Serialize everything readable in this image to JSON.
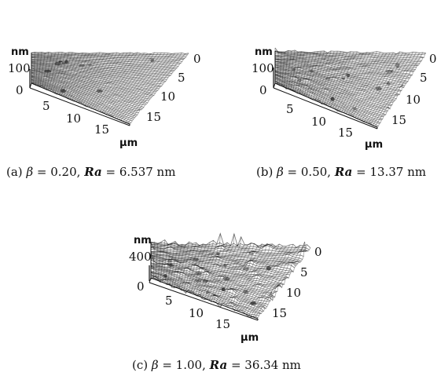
{
  "panels": [
    {
      "id": "a",
      "z_unit": "nm",
      "z_max": "100",
      "z_min": "0",
      "y_ticks": [
        "0",
        "5",
        "10",
        "15"
      ],
      "x_ticks": [
        "5",
        "10",
        "15"
      ],
      "xy_unit": "μm",
      "roughness": 0.25,
      "caption": "(a) β = 0.20, Ra = 6.537 nm",
      "caption_parts": {
        "label": "(a)",
        "beta_sym": "β",
        "beta_val": "= 0.20,",
        "ra_sym": "Ra",
        "ra_val": "= 6.537 nm"
      }
    },
    {
      "id": "b",
      "z_unit": "nm",
      "z_max": "100",
      "z_min": "0",
      "y_ticks": [
        "0",
        "5",
        "10",
        "15"
      ],
      "x_ticks": [
        "5",
        "10",
        "15"
      ],
      "xy_unit": "μm",
      "roughness": 0.5,
      "caption": "(b) β = 0.50, Ra = 13.37 nm",
      "caption_parts": {
        "label": "(b)",
        "beta_sym": "β",
        "beta_val": "= 0.50,",
        "ra_sym": "Ra",
        "ra_val": "= 13.37 nm"
      }
    },
    {
      "id": "c",
      "z_unit": "nm",
      "z_max": "400",
      "z_min": "0",
      "y_ticks": [
        "0",
        "5",
        "10",
        "15"
      ],
      "x_ticks": [
        "5",
        "10",
        "15"
      ],
      "xy_unit": "μm",
      "roughness": 0.9,
      "caption": "(c) β = 1.00, Ra = 36.34 nm",
      "caption_parts": {
        "label": "(c)",
        "beta_sym": "β",
        "beta_val": "= 1.00,",
        "ra_sym": "Ra",
        "ra_val": "= 36.34 nm"
      }
    }
  ]
}
